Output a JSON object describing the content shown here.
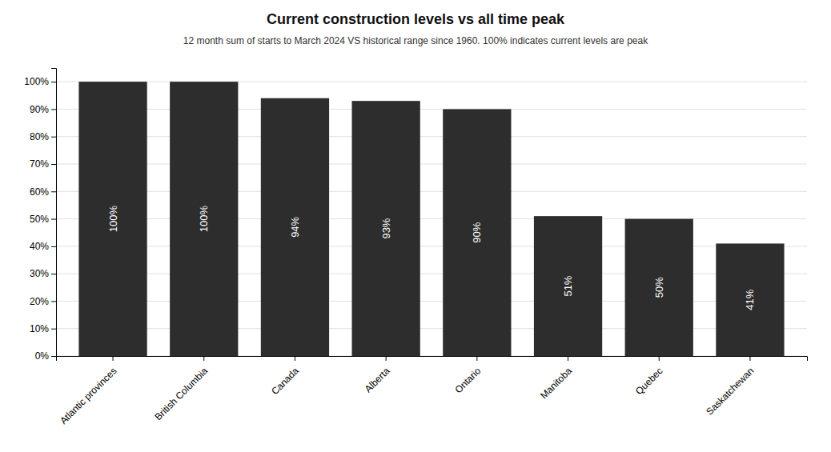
{
  "chart_data": {
    "type": "bar",
    "title": "Current construction levels vs all time peak",
    "subtitle": "12 month sum of starts to March 2024 VS historical range since 1960. 100% indicates current levels are peak",
    "categories": [
      "Atlantic provinces",
      "British Columbia",
      "Canada",
      "Alberta",
      "Ontario",
      "Manitoba",
      "Quebec",
      "Saskatchewan"
    ],
    "values": [
      100,
      100,
      94,
      93,
      90,
      51,
      50,
      41
    ],
    "value_labels": [
      "100%",
      "100%",
      "94%",
      "93%",
      "90%",
      "51%",
      "50%",
      "41%"
    ],
    "data_labels": true,
    "color": "#2d2d2d",
    "ylim": [
      0,
      105
    ],
    "yticks": [
      {
        "value": 0,
        "label": "0%"
      },
      {
        "value": 10,
        "label": "10%"
      },
      {
        "value": 20,
        "label": "20%"
      },
      {
        "value": 30,
        "label": "30%"
      },
      {
        "value": 40,
        "label": "40%"
      },
      {
        "value": 50,
        "label": "50%"
      },
      {
        "value": 60,
        "label": "60%"
      },
      {
        "value": 70,
        "label": "70%"
      },
      {
        "value": 80,
        "label": "80%"
      },
      {
        "value": 90,
        "label": "90%"
      },
      {
        "value": 100,
        "label": "100%"
      }
    ],
    "grid": true
  }
}
